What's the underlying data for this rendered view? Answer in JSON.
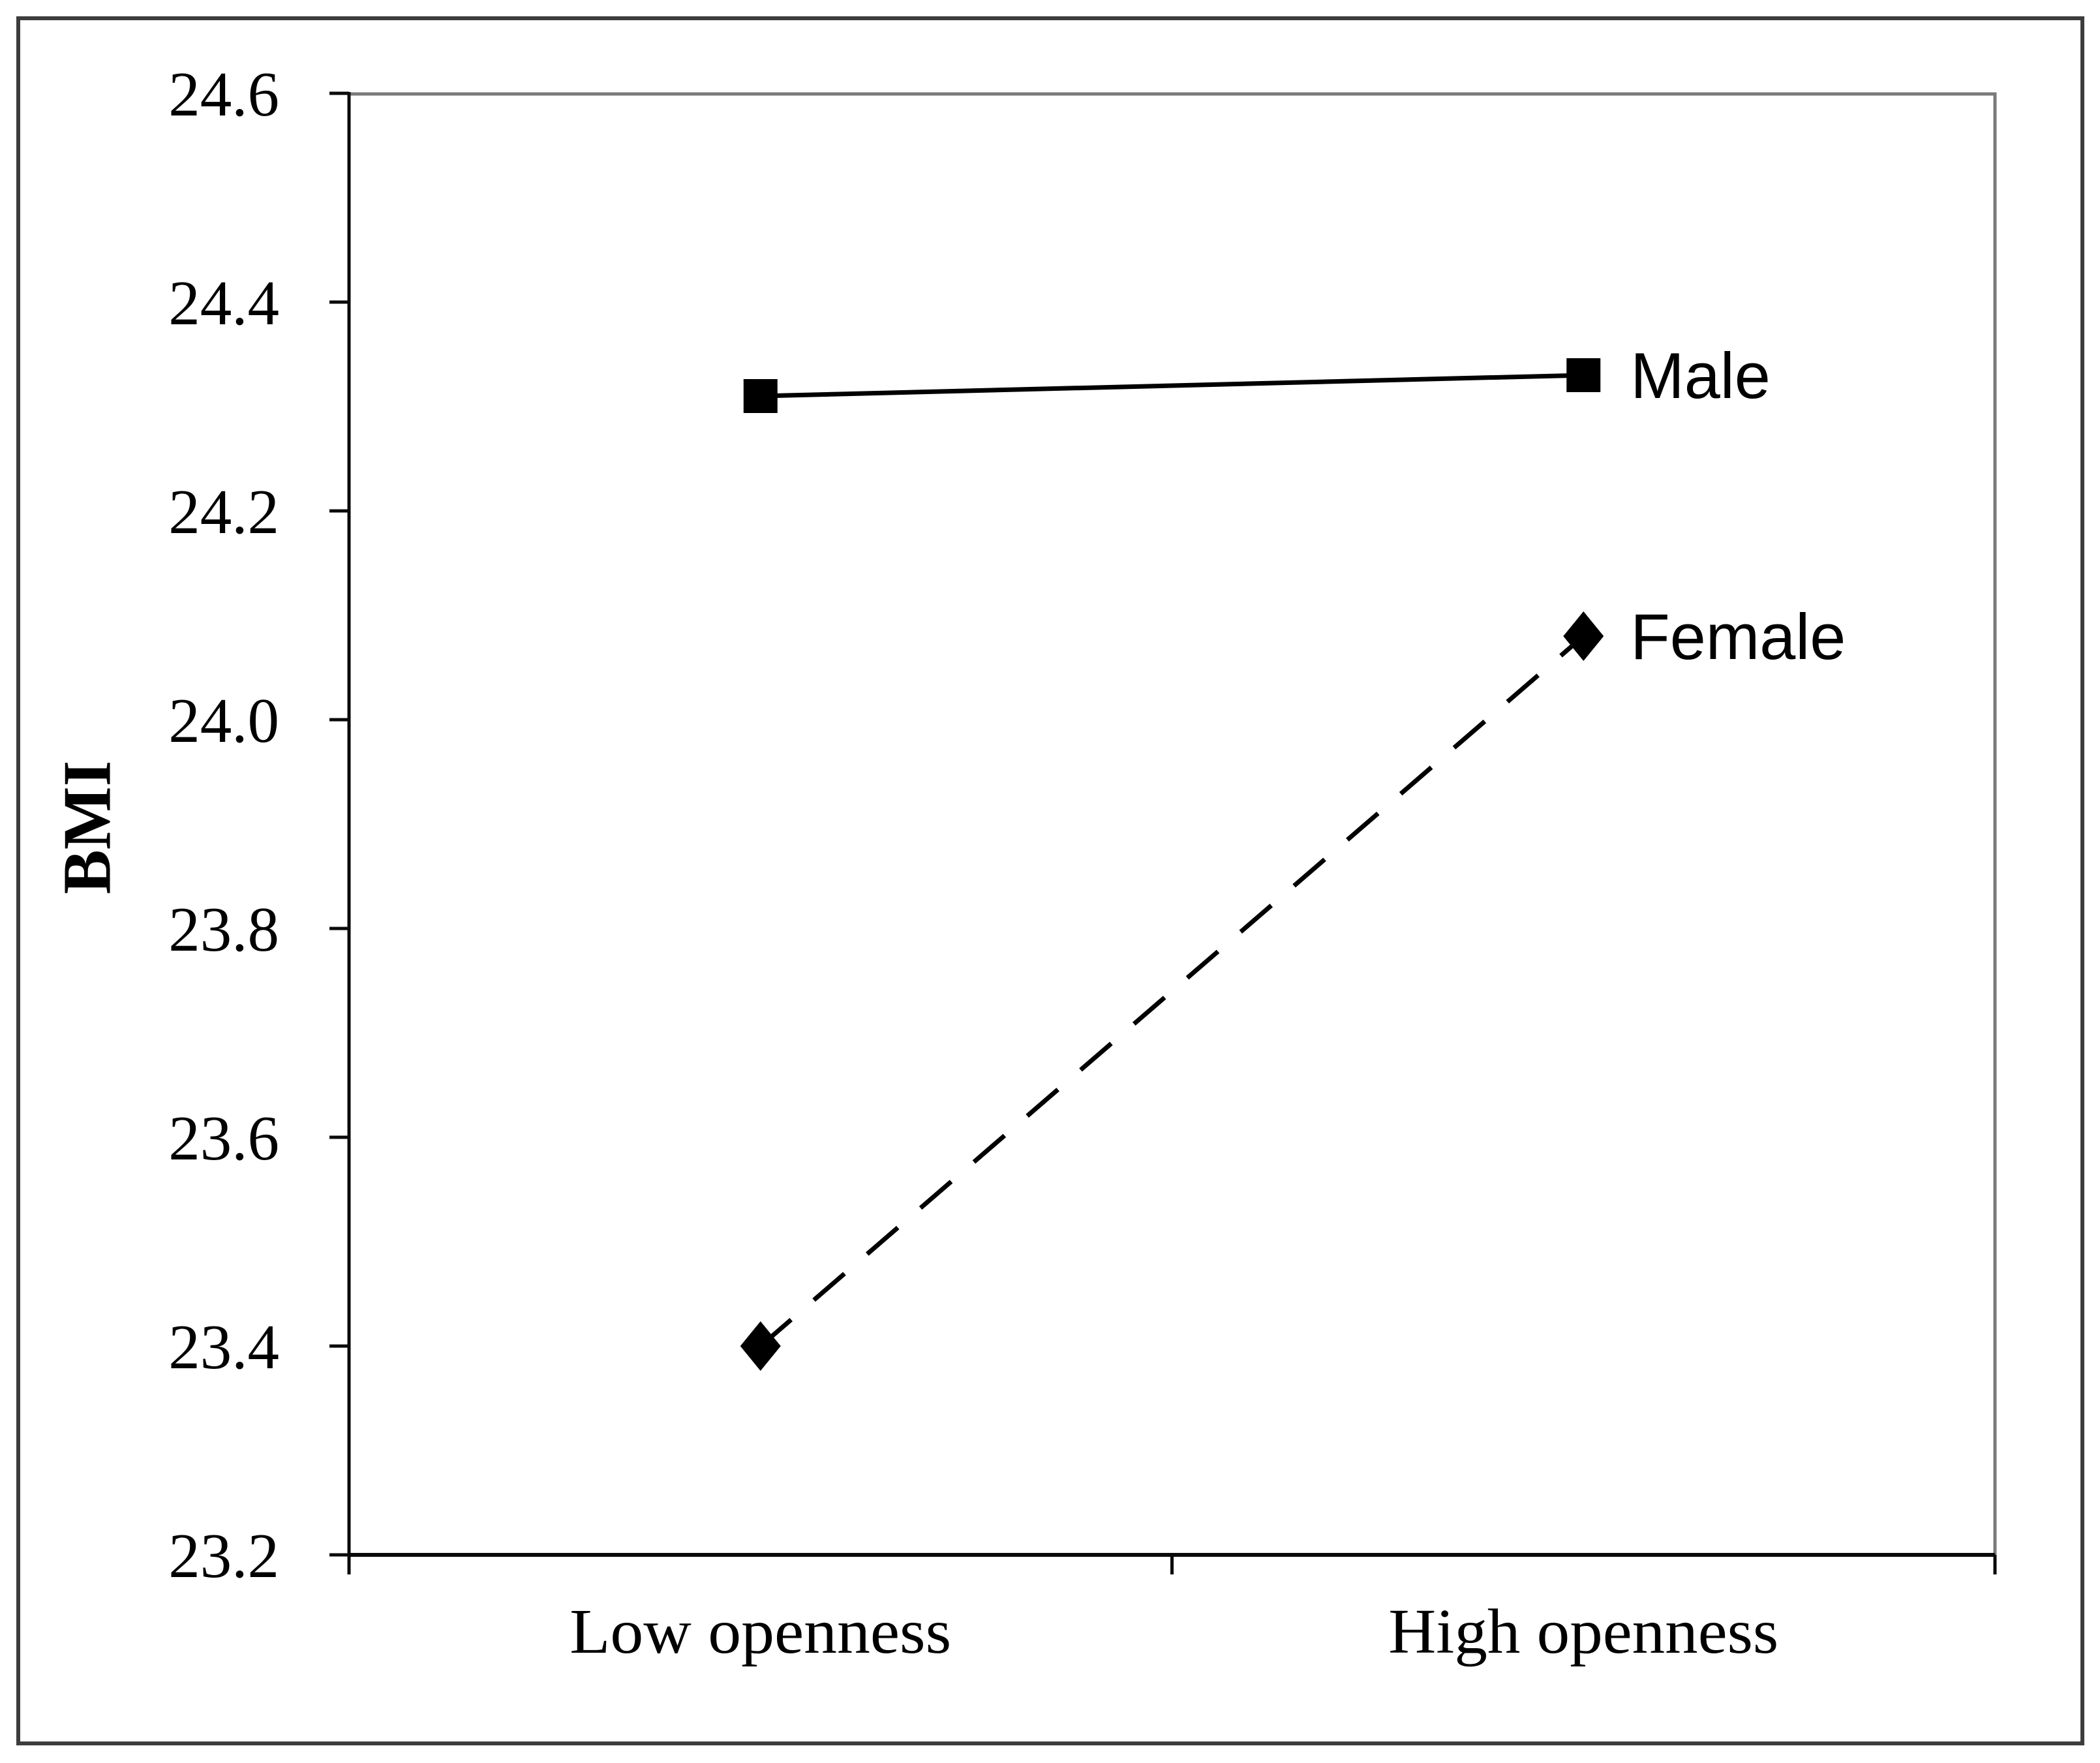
{
  "figure": {
    "background": "#ffffff",
    "border_color": "#3d3d3d",
    "frame_color": "#7a7a7a",
    "axis_color": "#0a0a0a",
    "text_color": "#000000"
  },
  "chart_data": {
    "type": "line",
    "title": "",
    "xlabel": "",
    "ylabel": "BMI",
    "categories": [
      "Low openness",
      "High openness"
    ],
    "series": [
      {
        "name": "Male",
        "values": [
          24.31,
          24.33
        ],
        "line_style": "solid",
        "marker": "square",
        "color": "#000000"
      },
      {
        "name": "Female",
        "values": [
          23.4,
          24.08
        ],
        "line_style": "dashed",
        "marker": "diamond",
        "color": "#000000"
      }
    ],
    "ylim": [
      23.2,
      24.6
    ],
    "ytick_step": 0.2,
    "ytick_labels": [
      "23.2",
      "23.4",
      "23.6",
      "23.8",
      "24.0",
      "24.2",
      "24.4",
      "24.6"
    ],
    "grid": "off",
    "legend_position": "labels-at-line-end"
  }
}
